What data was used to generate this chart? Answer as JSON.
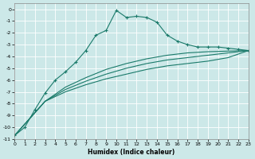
{
  "xlabel": "Humidex (Indice chaleur)",
  "bg_color": "#cce8e8",
  "grid_color": "#ffffff",
  "line_color": "#1a7a6a",
  "xlim": [
    0,
    23
  ],
  "ylim": [
    -11,
    0.5
  ],
  "yticks": [
    0,
    -1,
    -2,
    -3,
    -4,
    -5,
    -6,
    -7,
    -8,
    -9,
    -10,
    -11
  ],
  "xticks": [
    0,
    1,
    2,
    3,
    4,
    5,
    6,
    7,
    8,
    9,
    10,
    11,
    12,
    13,
    14,
    15,
    16,
    17,
    18,
    19,
    20,
    21,
    22,
    23
  ],
  "curve1_x": [
    0,
    1,
    2,
    3,
    4,
    5,
    6,
    7,
    8,
    9,
    10,
    11,
    12,
    13,
    14,
    15,
    16,
    17,
    18,
    19,
    20,
    21,
    22,
    23
  ],
  "curve1_y": [
    -10.7,
    -10.0,
    -8.5,
    -7.1,
    -6.0,
    -5.3,
    -4.5,
    -3.5,
    -2.2,
    -1.8,
    -0.1,
    -0.7,
    -0.6,
    -0.7,
    -1.1,
    -2.2,
    -2.7,
    -3.0,
    -3.2,
    -3.2,
    -3.2,
    -3.3,
    -3.4,
    -3.5
  ],
  "curve2_x": [
    0,
    23
  ],
  "curve2_y": [
    -10.7,
    -3.5
  ],
  "curve3_x": [
    0,
    23
  ],
  "curve3_y": [
    -10.7,
    -3.5
  ],
  "curve4_x": [
    0,
    23
  ],
  "curve4_y": [
    -10.7,
    -3.5
  ],
  "fan_x": [
    0,
    3,
    5,
    7,
    9,
    11,
    13,
    15,
    17,
    19,
    21,
    23
  ],
  "fan2_y": [
    -10.7,
    -7.8,
    -6.6,
    -5.8,
    -5.1,
    -4.6,
    -4.2,
    -3.9,
    -3.7,
    -3.6,
    -3.55,
    -3.5
  ],
  "fan3_y": [
    -10.7,
    -7.8,
    -6.8,
    -6.1,
    -5.5,
    -5.0,
    -4.6,
    -4.3,
    -4.1,
    -3.9,
    -3.7,
    -3.5
  ],
  "fan4_y": [
    -10.7,
    -7.8,
    -7.0,
    -6.4,
    -5.9,
    -5.5,
    -5.1,
    -4.8,
    -4.6,
    -4.4,
    -4.1,
    -3.5
  ]
}
